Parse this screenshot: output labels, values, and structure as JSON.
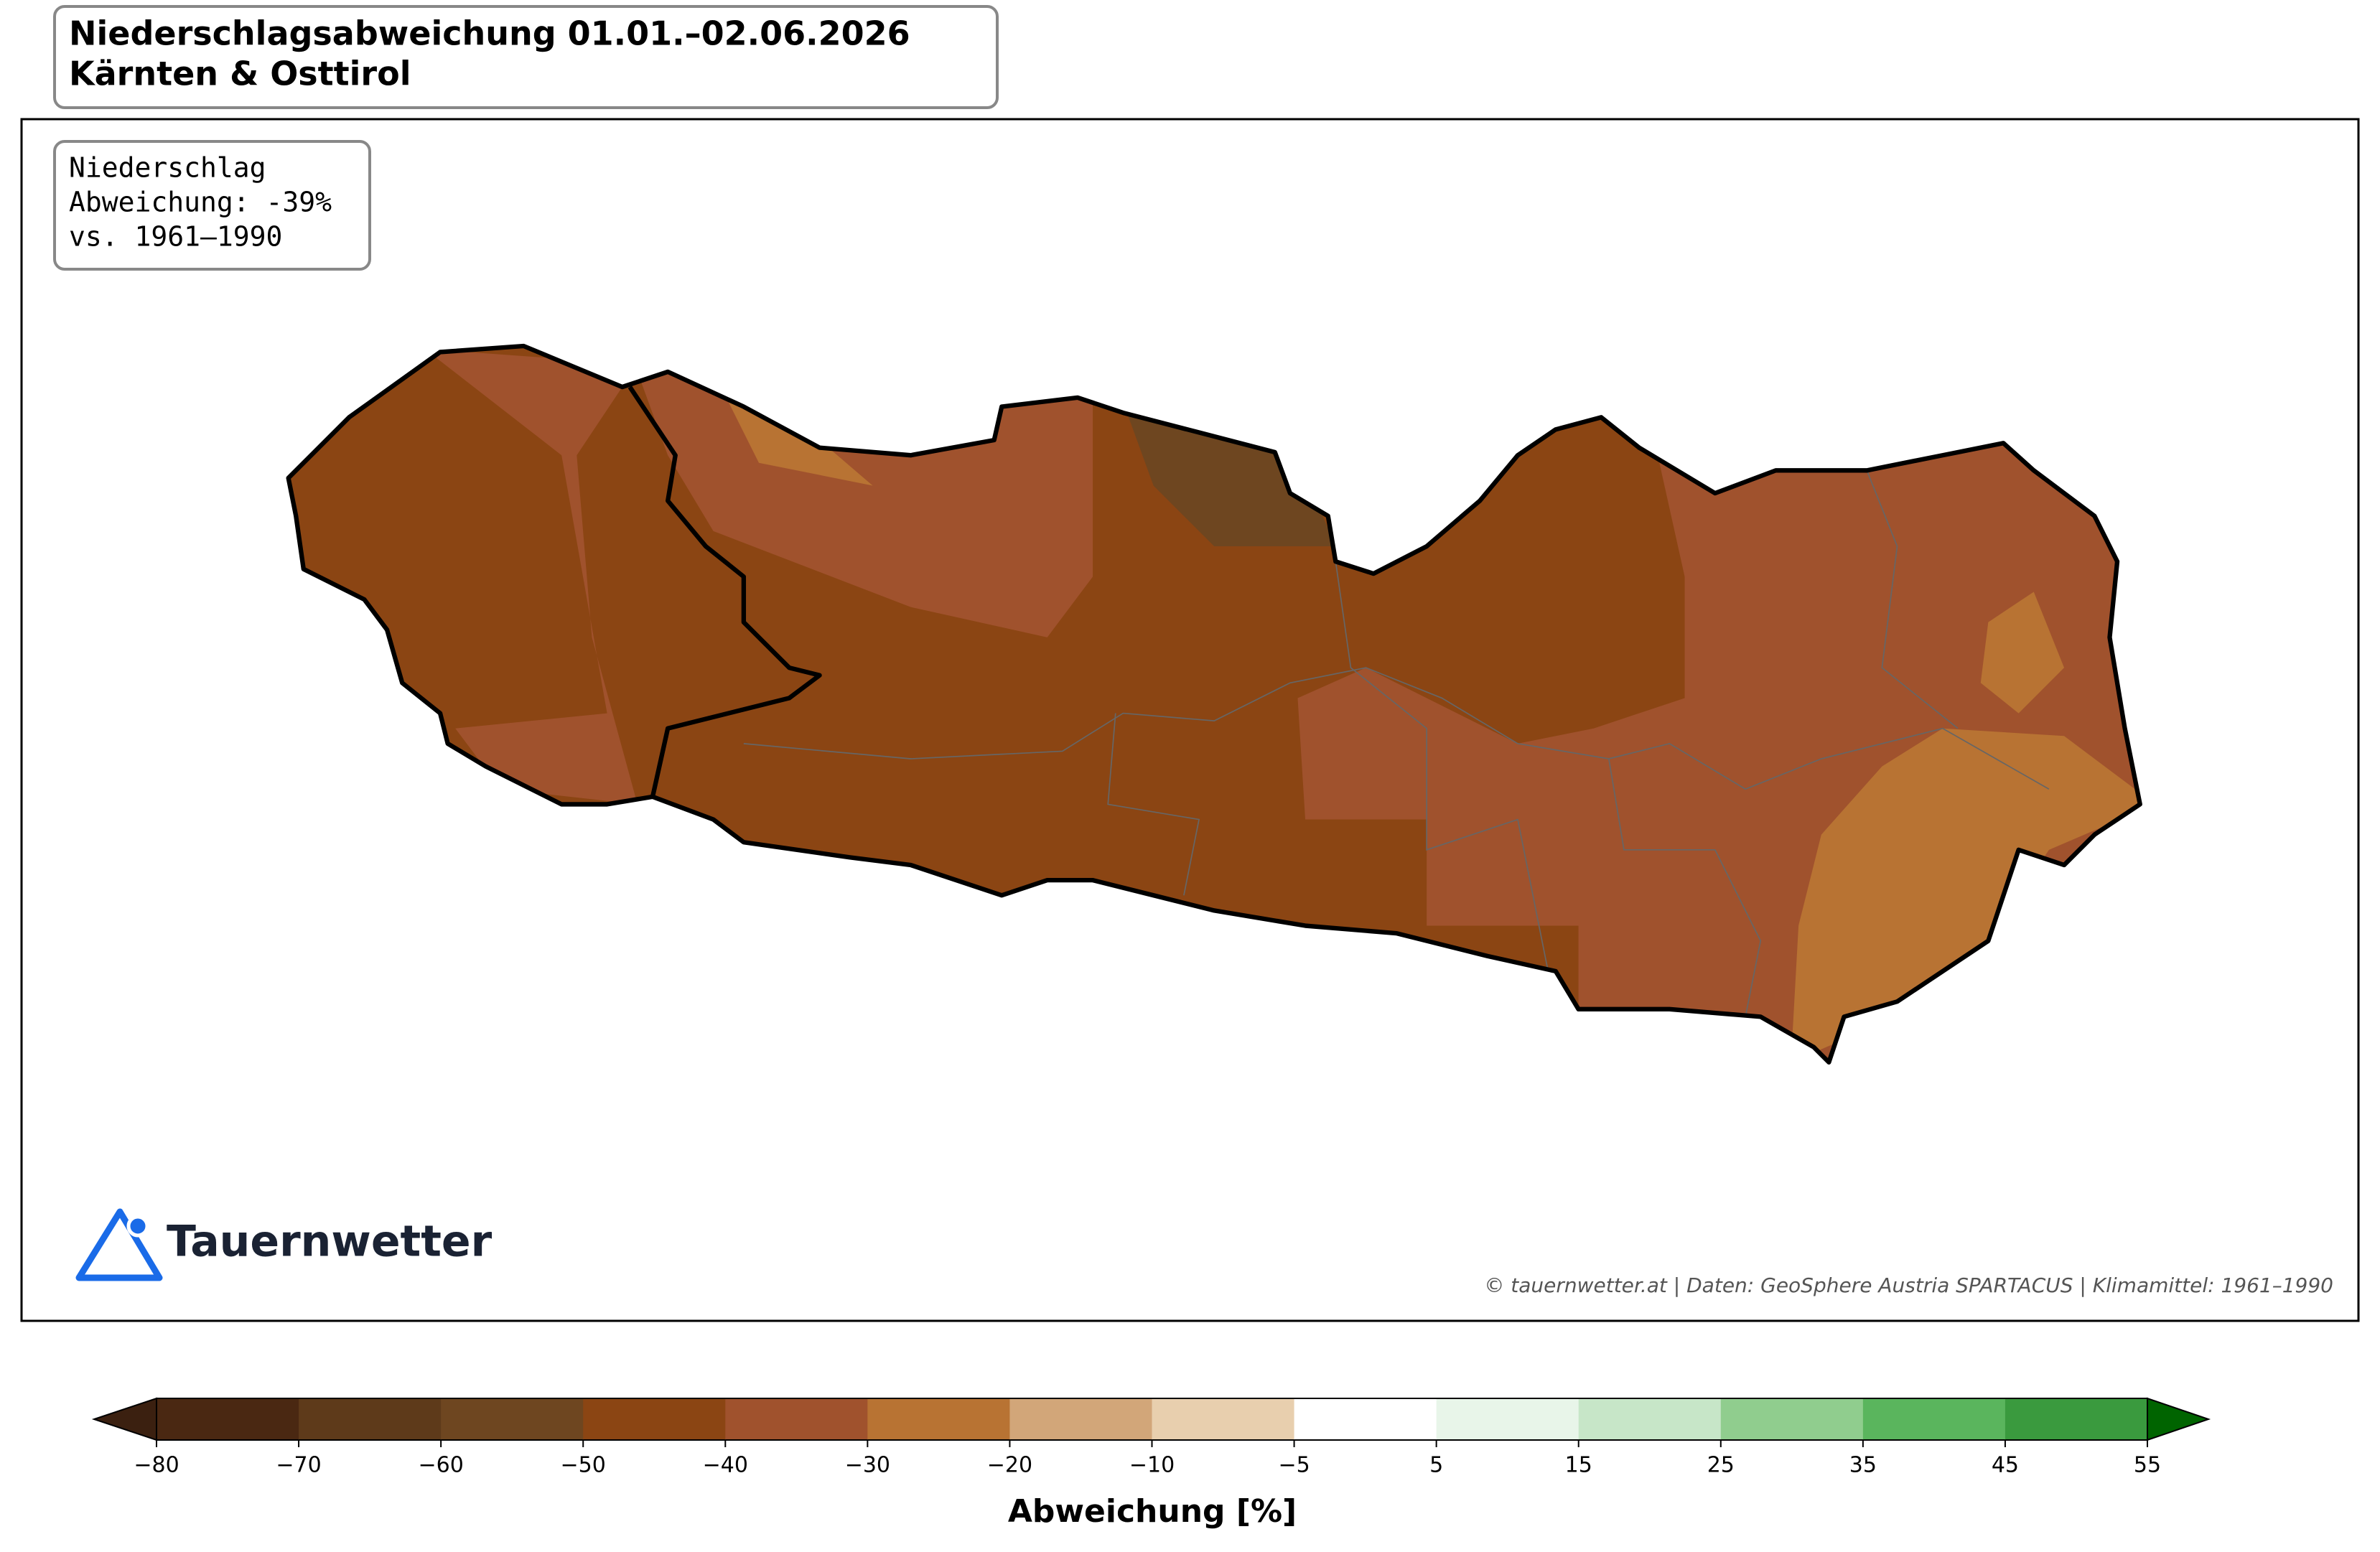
{
  "header": {
    "title": "Niederschlagsabweichung 01.01.–02.06.2026",
    "subtitle": "Kärnten & Osttirol"
  },
  "info_box": {
    "lines": [
      "Niederschlag",
      "Abweichung: -39%",
      "vs. 1961–1990"
    ]
  },
  "logo": {
    "text": "Tauernwetter"
  },
  "credit": "© tauernwetter.at | Daten: GeoSphere Austria SPARTACUS | Klimamittel: 1961–1990",
  "colorbar": {
    "label": "Abweichung [%]",
    "ticks": [
      {
        "value": -80,
        "label": "−80"
      },
      {
        "value": -70,
        "label": "−70"
      },
      {
        "value": -60,
        "label": "−60"
      },
      {
        "value": -50,
        "label": "−50"
      },
      {
        "value": -40,
        "label": "−40"
      },
      {
        "value": -30,
        "label": "−30"
      },
      {
        "value": -20,
        "label": "−20"
      },
      {
        "value": -10,
        "label": "−10"
      },
      {
        "value": -5,
        "label": "−5"
      },
      5,
      15,
      25,
      35,
      45,
      55
    ],
    "colors": [
      "#4a2812",
      "#5e3a1a",
      "#6e4620",
      "#8b4513",
      "#a0522d",
      "#b87333",
      "#d2a679",
      "#e8cfae",
      "#ffffff",
      "#e8f5e9",
      "#c7e6c8",
      "#90cd8e",
      "#5ab55d",
      "#3a9a3e"
    ],
    "under_color": "#3b2010",
    "over_color": "#006400"
  }
}
